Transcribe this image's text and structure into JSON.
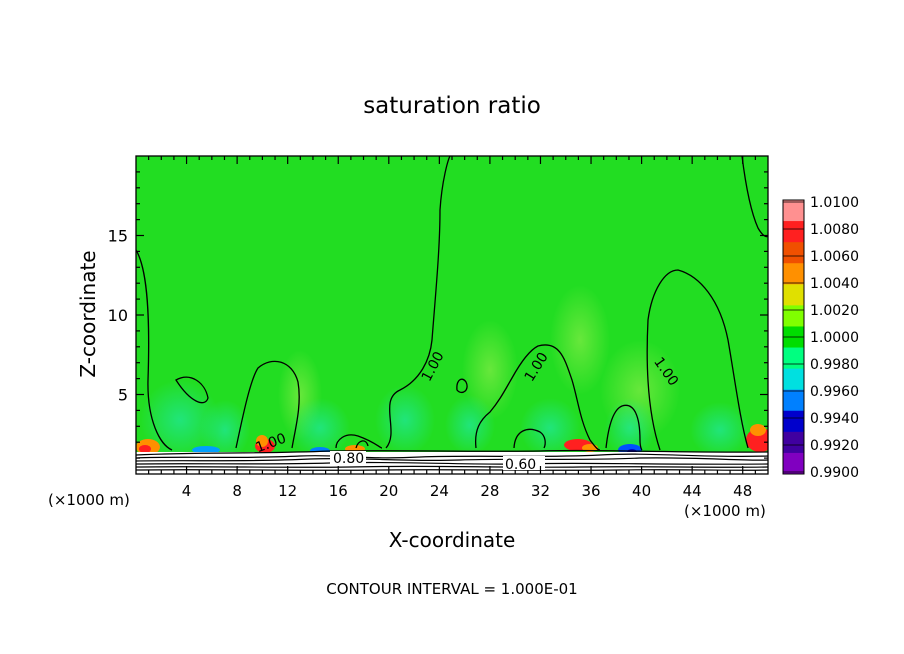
{
  "chart_data": {
    "type": "heatmap",
    "title": "saturation ratio",
    "xlabel": "X-coordinate",
    "ylabel": "Z-coordinate",
    "x_unit": "(×1000 m)",
    "y_unit": "(×1000 m)",
    "xlim": [
      0,
      50
    ],
    "ylim": [
      0,
      20
    ],
    "x_ticks": [
      4,
      8,
      12,
      16,
      20,
      24,
      28,
      32,
      36,
      40,
      44,
      48
    ],
    "y_ticks": [
      5,
      10,
      15
    ],
    "colorbar": {
      "min": 0.99,
      "max": 1.01,
      "labels": [
        "1.0100",
        "1.0080",
        "1.0060",
        "1.0040",
        "1.0020",
        "1.0000",
        "0.9980",
        "0.9960",
        "0.9940",
        "0.9920",
        "0.9900"
      ],
      "colors": [
        "#ff9090",
        "#ff2020",
        "#f05000",
        "#ff9000",
        "#e0e000",
        "#80ff00",
        "#00dd00",
        "#00ff80",
        "#00e0e0",
        "#0080ff",
        "#0000cc",
        "#4000a0",
        "#8000c0"
      ]
    },
    "contour_labels": [
      {
        "text": "1.00",
        "x": 10.2,
        "z": 2.2
      },
      {
        "text": "1.00",
        "x": 22.8,
        "z": 7.0
      },
      {
        "text": "1.00",
        "x": 30.4,
        "z": 7.0
      },
      {
        "text": "1.00",
        "x": 40.9,
        "z": 6.5
      },
      {
        "text": "0.80",
        "x": 16.6,
        "z": 1.0
      },
      {
        "text": "0.60",
        "x": 30.4,
        "z": 0.6
      }
    ],
    "contour_interval_note": "CONTOUR INTERVAL = 1.000E-01",
    "grid": false,
    "legend_position": "right"
  }
}
